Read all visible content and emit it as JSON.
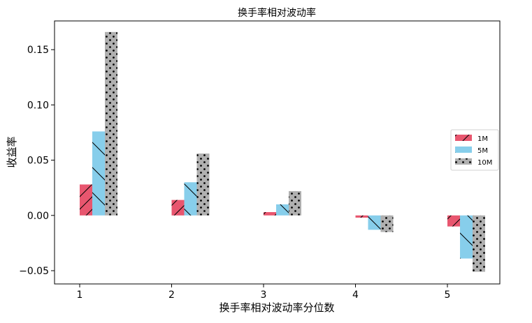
{
  "chart_data": {
    "type": "bar",
    "title": "换手率相对波动率",
    "xlabel": "换手率相对波动率分位数",
    "ylabel": "收益率",
    "categories": [
      "1",
      "2",
      "3",
      "4",
      "5"
    ],
    "series": [
      {
        "name": "1M",
        "values": [
          0.028,
          0.014,
          0.003,
          -0.002,
          -0.01
        ],
        "color": "#e8566f",
        "hatch": "diagonal-forward"
      },
      {
        "name": "5M",
        "values": [
          0.076,
          0.03,
          0.01,
          -0.013,
          -0.039
        ],
        "color": "#87ceeb",
        "hatch": "diagonal-backward"
      },
      {
        "name": "10M",
        "values": [
          0.166,
          0.056,
          0.022,
          -0.015,
          -0.051
        ],
        "color": "#b0b0b0",
        "hatch": "dots"
      }
    ],
    "ylim": [
      -0.062,
      0.176
    ],
    "yticks": [
      -0.05,
      0.0,
      0.05,
      0.1,
      0.15
    ],
    "ytick_labels": [
      "−0.05",
      "0.00",
      "0.05",
      "0.10",
      "0.15"
    ],
    "grid": false,
    "legend_position": "right"
  }
}
